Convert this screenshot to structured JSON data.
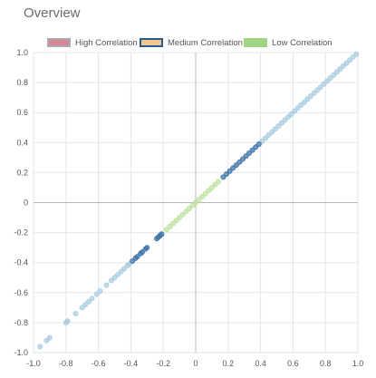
{
  "header": {
    "title": "Overview"
  },
  "legend": {
    "items": [
      {
        "label": "High Correlation",
        "fill": "#d9878e",
        "border": "#a9a9b5"
      },
      {
        "label": "Medium Correlation",
        "fill": "#f5c78c",
        "border": "#2a5a8c"
      },
      {
        "label": "Low Correlation",
        "fill": "#9fd480",
        "border": "#9fd480"
      }
    ]
  },
  "chart_data": {
    "type": "scatter",
    "title": "Overview",
    "xlabel": "",
    "ylabel": "",
    "xlim": [
      -1.0,
      1.0
    ],
    "ylim": [
      -1.0,
      1.0
    ],
    "grid": true,
    "legend_position": "top",
    "x_ticks": [
      "-1.0",
      "-0.8",
      "-0.6",
      "-0.4",
      "-0.2",
      "0",
      "0.2",
      "0.4",
      "0.6",
      "0.8",
      "1.0"
    ],
    "y_ticks": [
      "1.0",
      "0.8",
      "0.6",
      "0.4",
      "0.2",
      "0",
      "-0.2",
      "-0.4",
      "-0.6",
      "-0.8",
      "-1.0"
    ],
    "series": [
      {
        "name": "High Correlation",
        "color": "#a9cce0",
        "points": [
          [
            -0.96,
            -0.96
          ],
          [
            -0.92,
            -0.92
          ],
          [
            -0.9,
            -0.9
          ],
          [
            -0.8,
            -0.8
          ],
          [
            -0.79,
            -0.79
          ],
          [
            -0.74,
            -0.74
          ],
          [
            -0.7,
            -0.7
          ],
          [
            -0.68,
            -0.68
          ],
          [
            -0.66,
            -0.66
          ],
          [
            -0.64,
            -0.64
          ],
          [
            -0.61,
            -0.61
          ],
          [
            -0.59,
            -0.59
          ],
          [
            -0.55,
            -0.55
          ],
          [
            -0.52,
            -0.52
          ],
          [
            -0.5,
            -0.5
          ],
          [
            -0.48,
            -0.48
          ],
          [
            -0.46,
            -0.46
          ],
          [
            -0.44,
            -0.44
          ],
          [
            -0.42,
            -0.42
          ],
          [
            -0.41,
            -0.41
          ],
          [
            0.41,
            0.41
          ],
          [
            0.43,
            0.43
          ],
          [
            0.45,
            0.45
          ],
          [
            0.47,
            0.47
          ],
          [
            0.49,
            0.49
          ],
          [
            0.51,
            0.51
          ],
          [
            0.53,
            0.53
          ],
          [
            0.55,
            0.55
          ],
          [
            0.57,
            0.57
          ],
          [
            0.59,
            0.59
          ],
          [
            0.61,
            0.61
          ],
          [
            0.63,
            0.63
          ],
          [
            0.65,
            0.65
          ],
          [
            0.67,
            0.67
          ],
          [
            0.69,
            0.69
          ],
          [
            0.71,
            0.71
          ],
          [
            0.73,
            0.73
          ],
          [
            0.75,
            0.75
          ],
          [
            0.77,
            0.77
          ],
          [
            0.79,
            0.79
          ],
          [
            0.81,
            0.81
          ],
          [
            0.83,
            0.83
          ],
          [
            0.85,
            0.85
          ],
          [
            0.87,
            0.87
          ],
          [
            0.89,
            0.89
          ],
          [
            0.91,
            0.91
          ],
          [
            0.93,
            0.93
          ],
          [
            0.95,
            0.95
          ],
          [
            0.97,
            0.97
          ],
          [
            0.99,
            0.99
          ]
        ]
      },
      {
        "name": "Medium Correlation",
        "color": "#3f73a8",
        "points": [
          [
            -0.39,
            -0.39
          ],
          [
            -0.37,
            -0.37
          ],
          [
            -0.36,
            -0.36
          ],
          [
            -0.34,
            -0.34
          ],
          [
            -0.33,
            -0.33
          ],
          [
            -0.31,
            -0.31
          ],
          [
            -0.3,
            -0.3
          ],
          [
            -0.24,
            -0.24
          ],
          [
            -0.23,
            -0.23
          ],
          [
            -0.22,
            -0.22
          ],
          [
            -0.21,
            -0.21
          ],
          [
            0.17,
            0.17
          ],
          [
            0.19,
            0.19
          ],
          [
            0.21,
            0.21
          ],
          [
            0.23,
            0.23
          ],
          [
            0.25,
            0.25
          ],
          [
            0.27,
            0.27
          ],
          [
            0.29,
            0.29
          ],
          [
            0.31,
            0.31
          ],
          [
            0.33,
            0.33
          ],
          [
            0.35,
            0.35
          ],
          [
            0.37,
            0.37
          ],
          [
            0.39,
            0.39
          ]
        ]
      },
      {
        "name": "Low Correlation",
        "color": "#bfe1a0",
        "points": [
          [
            -0.18,
            -0.18
          ],
          [
            -0.16,
            -0.16
          ],
          [
            -0.14,
            -0.14
          ],
          [
            -0.12,
            -0.12
          ],
          [
            -0.1,
            -0.1
          ],
          [
            -0.08,
            -0.08
          ],
          [
            -0.06,
            -0.06
          ],
          [
            -0.04,
            -0.04
          ],
          [
            -0.02,
            -0.02
          ],
          [
            0.0,
            0.0
          ],
          [
            0.02,
            0.02
          ],
          [
            0.04,
            0.04
          ],
          [
            0.06,
            0.06
          ],
          [
            0.08,
            0.08
          ],
          [
            0.1,
            0.1
          ],
          [
            0.12,
            0.12
          ],
          [
            0.14,
            0.14
          ]
        ]
      }
    ]
  }
}
